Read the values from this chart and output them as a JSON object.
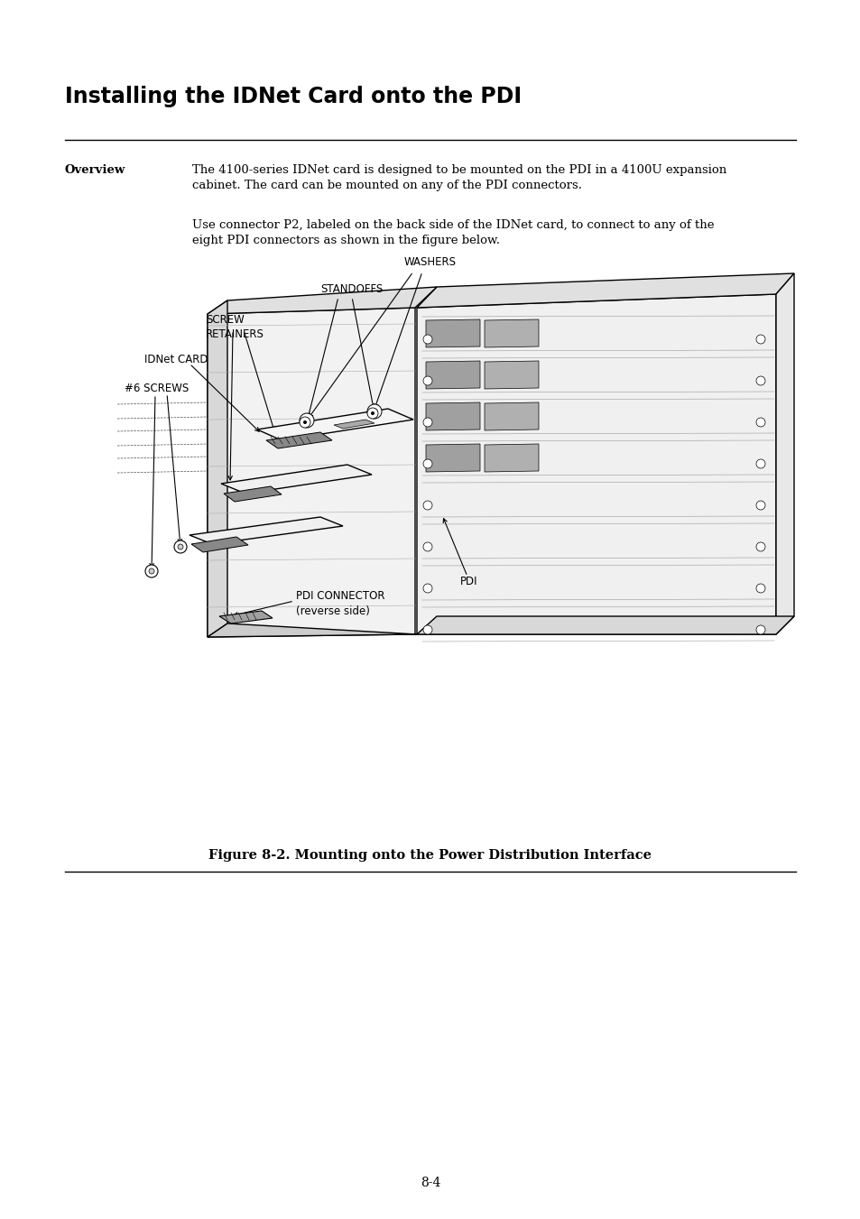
{
  "page_title": "Installing the IDNet Card onto the PDI",
  "section_label": "Overview",
  "paragraph1": "The 4100-series IDNet card is designed to be mounted on the PDI in a 4100U expansion\ncabinet. The card can be mounted on any of the PDI connectors.",
  "paragraph2": "Use connector P2, labeled on the back side of the IDNet card, to connect to any of the\neight PDI connectors as shown in the figure below.",
  "figure_caption": "Figure 8-2. Mounting onto the Power Distribution Interface",
  "page_number": "8-4",
  "background_color": "#ffffff",
  "text_color": "#000000",
  "title_fontsize": 17,
  "section_fontsize": 9.5,
  "body_fontsize": 9.5,
  "caption_fontsize": 10.5
}
